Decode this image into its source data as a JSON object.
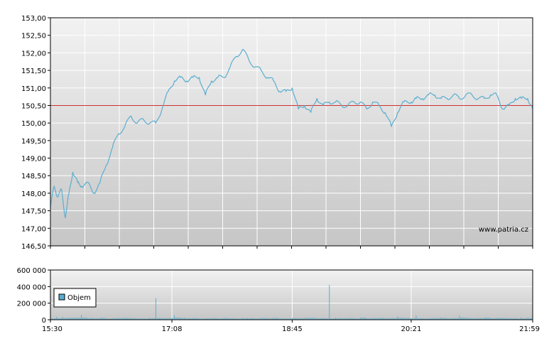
{
  "colors": {
    "price_line": "#5aaed0",
    "reference_line": "#d03030",
    "volume_bar": "#5aaed0",
    "grid": "#ffffff",
    "plot_bg_top": "#f2f2f2",
    "plot_bg_bottom": "#c6c6c6",
    "axis": "#000000"
  },
  "watermark": "www.patria.cz",
  "chart_data": [
    {
      "type": "line",
      "name": "price",
      "ylim": [
        146.5,
        153.0
      ],
      "y_ticks": [
        "153,00",
        "152,50",
        "152,00",
        "151,50",
        "151,00",
        "150,50",
        "150,00",
        "149,50",
        "149,00",
        "148,50",
        "148,00",
        "147,50",
        "147,00",
        "146,50"
      ],
      "y_tick_values": [
        153.0,
        152.5,
        152.0,
        151.5,
        151.0,
        150.5,
        150.0,
        149.5,
        149.0,
        148.5,
        148.0,
        147.5,
        147.0,
        146.5
      ],
      "reference_value": 150.5,
      "time_range": [
        "15:30",
        "21:59"
      ],
      "series": [
        {
          "x": [
            "15:30",
            "15:33",
            "15:36",
            "15:39",
            "15:42",
            "15:45",
            "15:48",
            "15:52",
            "15:55",
            "16:00",
            "16:05",
            "16:10",
            "16:15",
            "16:20",
            "16:25",
            "16:30",
            "16:35",
            "16:40",
            "16:45",
            "16:50",
            "16:55",
            "17:00",
            "17:05",
            "17:10",
            "17:15",
            "17:20",
            "17:25",
            "17:30",
            "17:35",
            "17:40",
            "17:45",
            "17:50",
            "17:55",
            "18:00",
            "18:05",
            "18:10",
            "18:15",
            "18:20",
            "18:25",
            "18:30",
            "18:35",
            "18:40",
            "18:45",
            "18:50",
            "18:55",
            "19:00",
            "19:05",
            "19:10",
            "19:15",
            "19:20",
            "19:25",
            "19:30",
            "19:35",
            "19:40",
            "19:45",
            "19:50",
            "19:55",
            "20:00",
            "20:05",
            "20:10",
            "20:15",
            "20:21",
            "20:25",
            "20:30",
            "20:35",
            "20:40",
            "20:45",
            "20:50",
            "20:55",
            "21:00",
            "21:05",
            "21:10",
            "21:15",
            "21:20",
            "21:25",
            "21:30",
            "21:35",
            "21:40",
            "21:45",
            "21:50",
            "21:55",
            "21:59"
          ],
          "y": [
            147.6,
            148.2,
            147.9,
            148.1,
            147.3,
            148.0,
            148.6,
            148.3,
            148.2,
            148.3,
            148.0,
            148.3,
            148.8,
            149.3,
            149.7,
            149.9,
            150.2,
            150.0,
            150.1,
            150.0,
            150.0,
            150.4,
            150.9,
            151.2,
            151.3,
            151.2,
            151.3,
            151.3,
            150.8,
            151.2,
            151.3,
            151.3,
            151.6,
            151.9,
            152.1,
            151.8,
            151.6,
            151.5,
            151.3,
            151.2,
            150.9,
            150.9,
            151.0,
            150.4,
            150.5,
            150.3,
            150.7,
            150.5,
            150.6,
            150.6,
            150.5,
            150.5,
            150.6,
            150.6,
            150.4,
            150.6,
            150.5,
            150.3,
            149.9,
            150.3,
            150.6,
            150.6,
            150.7,
            150.7,
            150.8,
            150.8,
            150.7,
            150.7,
            150.8,
            150.7,
            150.8,
            150.8,
            150.7,
            150.7,
            150.8,
            150.8,
            150.4,
            150.5,
            150.7,
            150.7,
            150.7,
            150.4
          ]
        }
      ]
    },
    {
      "type": "bar",
      "name": "volume",
      "legend": "Objem",
      "ylim": [
        0,
        600000
      ],
      "y_ticks": [
        "600 000",
        "400 000",
        "200 000",
        "0"
      ],
      "y_tick_values": [
        600000,
        400000,
        200000,
        0
      ],
      "x_ticks": [
        "15:30",
        "17:08",
        "18:45",
        "20:21",
        "21:59"
      ],
      "series": [
        {
          "name": "Objem",
          "x": [
            "15:30",
            "15:35",
            "15:40",
            "15:45",
            "15:50",
            "15:55",
            "16:00",
            "16:05",
            "16:10",
            "16:15",
            "16:20",
            "16:25",
            "16:30",
            "16:35",
            "16:40",
            "16:45",
            "16:50",
            "16:55",
            "17:00",
            "17:05",
            "17:10",
            "17:15",
            "17:20",
            "17:25",
            "17:30",
            "17:35",
            "17:40",
            "17:45",
            "17:50",
            "17:55",
            "18:00",
            "18:05",
            "18:10",
            "18:15",
            "18:20",
            "18:25",
            "18:30",
            "18:35",
            "18:40",
            "18:45",
            "18:50",
            "18:55",
            "19:00",
            "19:05",
            "19:10",
            "19:15",
            "19:20",
            "19:25",
            "19:30",
            "19:35",
            "19:40",
            "19:45",
            "19:50",
            "19:55",
            "20:00",
            "20:05",
            "20:10",
            "20:15",
            "20:20",
            "20:25",
            "20:30",
            "20:35",
            "20:40",
            "20:45",
            "20:50",
            "20:55",
            "21:00",
            "21:05",
            "21:10",
            "21:15",
            "21:20",
            "21:25",
            "21:30",
            "21:35",
            "21:40",
            "21:45",
            "21:50",
            "21:55"
          ],
          "values": [
            70000,
            35000,
            30000,
            25000,
            28000,
            60000,
            20000,
            18000,
            22000,
            15000,
            18000,
            20000,
            25000,
            18000,
            16000,
            15000,
            22000,
            260000,
            18000,
            20000,
            50000,
            22000,
            18000,
            20000,
            15000,
            18000,
            20000,
            16000,
            22000,
            18000,
            15000,
            20000,
            18000,
            16000,
            20000,
            18000,
            22000,
            15000,
            16000,
            20000,
            18000,
            22000,
            25000,
            18000,
            20000,
            420000,
            22000,
            18000,
            20000,
            16000,
            25000,
            18000,
            20000,
            22000,
            18000,
            20000,
            40000,
            22000,
            18000,
            50000,
            20000,
            18000,
            22000,
            25000,
            18000,
            20000,
            50000,
            22000,
            18000,
            20000,
            25000,
            18000,
            22000,
            20000,
            18000,
            22000,
            30000,
            25000
          ]
        }
      ]
    }
  ]
}
